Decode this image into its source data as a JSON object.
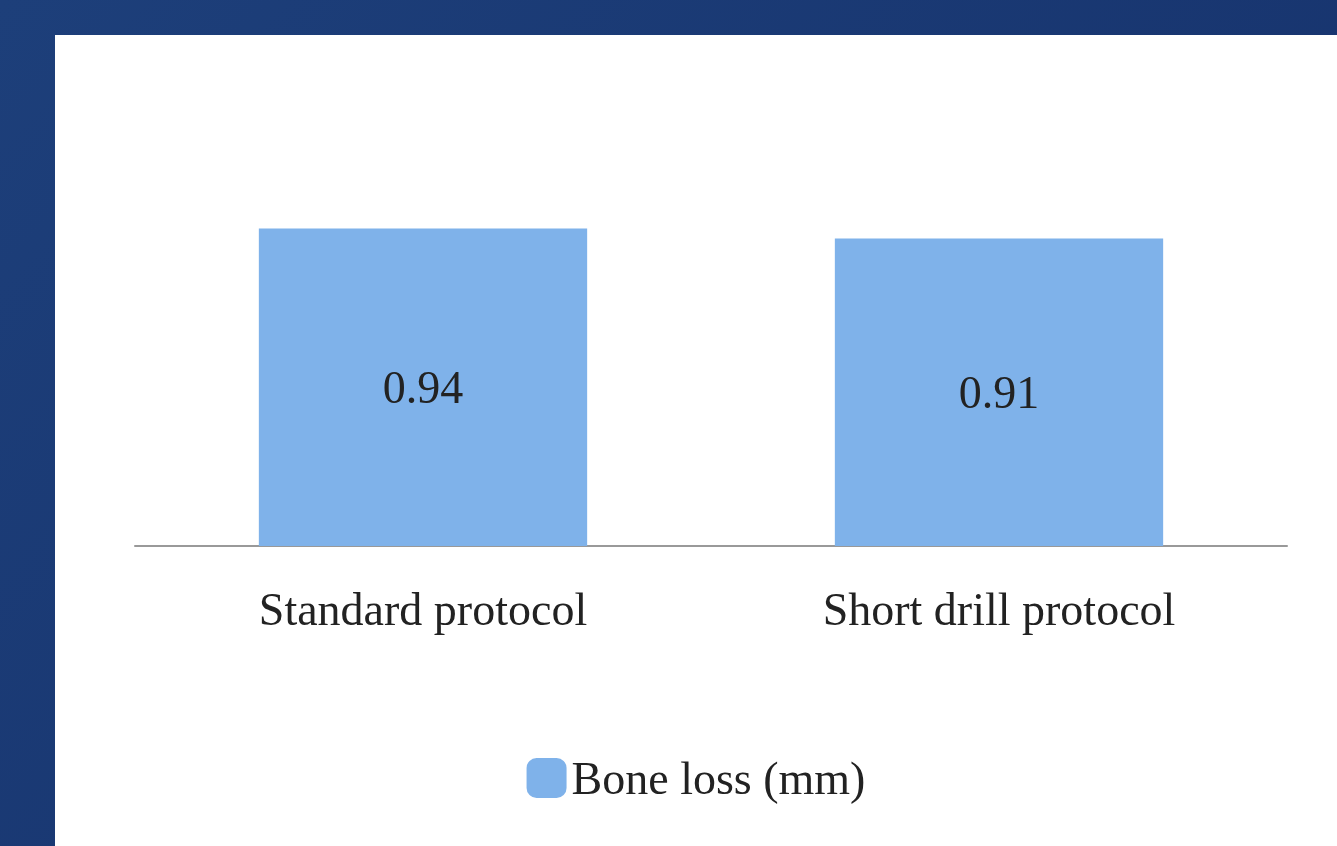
{
  "chart_data": {
    "type": "bar",
    "categories": [
      "Standard protocol",
      "Short drill protocol"
    ],
    "series": [
      {
        "name": "Bone loss (mm)",
        "color": "#7fb2ea",
        "values": [
          0.94,
          0.91
        ]
      }
    ],
    "data_labels": true,
    "legend": "bottom"
  }
}
